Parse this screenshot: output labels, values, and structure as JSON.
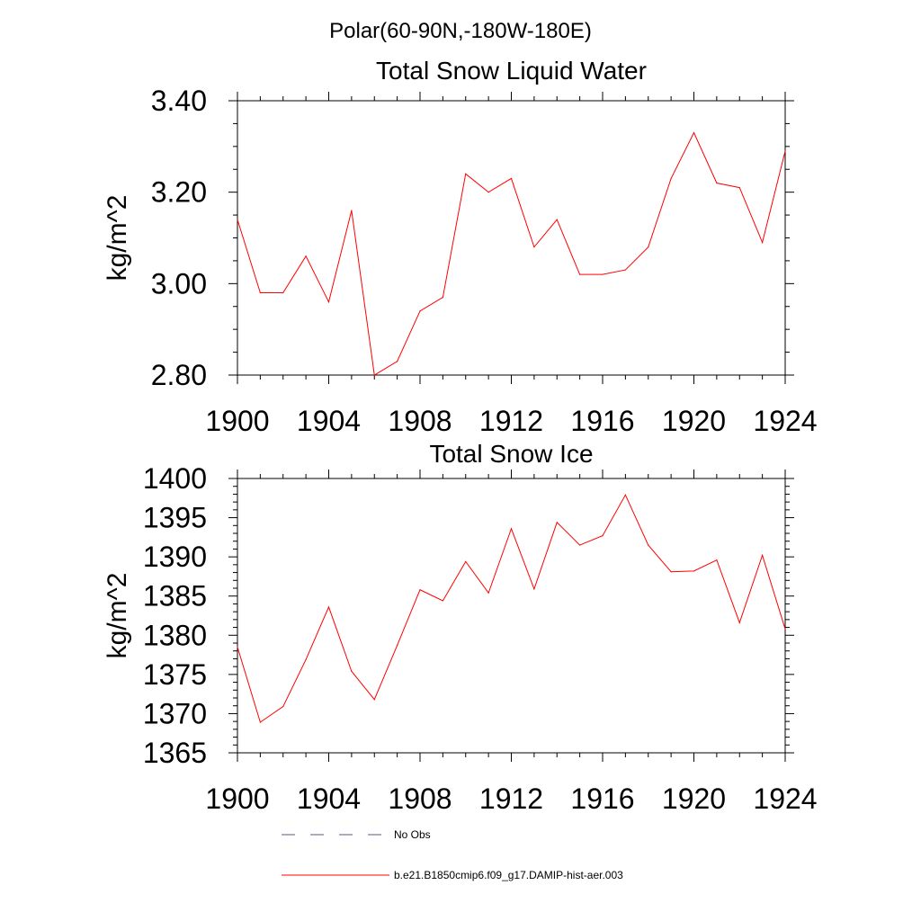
{
  "figure": {
    "main_title": "Polar(60-90N,-180W-180E)"
  },
  "chart_data": [
    {
      "type": "line",
      "title": "Total Snow Liquid Water",
      "xlabel": "",
      "ylabel": "kg/m^2",
      "xlim": [
        1900,
        1924
      ],
      "ylim": [
        2.8,
        3.4
      ],
      "x_ticks": [
        1900,
        1904,
        1908,
        1912,
        1916,
        1920,
        1924
      ],
      "x_tick_labels": [
        "1900",
        "1904",
        "1908",
        "1912",
        "1916",
        "1920",
        "1924"
      ],
      "y_ticks": [
        2.8,
        3.0,
        3.2,
        3.4
      ],
      "y_tick_labels": [
        "2.80",
        "3.00",
        "3.20",
        "3.40"
      ],
      "y_minor_step": 0.05,
      "x_minor_step": 1,
      "grid": false,
      "series": [
        {
          "name": "b.e21.B1850cmip6.f09_g17.DAMIP-hist-aer.003",
          "color": "#ff0000",
          "x": [
            1900,
            1901,
            1902,
            1903,
            1904,
            1905,
            1906,
            1907,
            1908,
            1909,
            1910,
            1911,
            1912,
            1913,
            1914,
            1915,
            1916,
            1917,
            1918,
            1919,
            1920,
            1921,
            1922,
            1923,
            1924
          ],
          "values": [
            3.14,
            2.98,
            2.98,
            3.06,
            2.96,
            3.16,
            2.8,
            2.83,
            2.94,
            2.97,
            3.24,
            3.2,
            3.23,
            3.08,
            3.14,
            3.02,
            3.02,
            3.03,
            3.08,
            3.23,
            3.33,
            3.22,
            3.21,
            3.09,
            3.29
          ]
        }
      ]
    },
    {
      "type": "line",
      "title": "Total Snow Ice",
      "xlabel": "",
      "ylabel": "kg/m^2",
      "xlim": [
        1900,
        1924
      ],
      "ylim": [
        1365,
        1400
      ],
      "x_ticks": [
        1900,
        1904,
        1908,
        1912,
        1916,
        1920,
        1924
      ],
      "x_tick_labels": [
        "1900",
        "1904",
        "1908",
        "1912",
        "1916",
        "1920",
        "1924"
      ],
      "y_ticks": [
        1365,
        1370,
        1375,
        1380,
        1385,
        1390,
        1395,
        1400
      ],
      "y_tick_labels": [
        "1365",
        "1370",
        "1375",
        "1380",
        "1385",
        "1390",
        "1395",
        "1400"
      ],
      "y_minor_step": 1,
      "x_minor_step": 1,
      "grid": false,
      "series": [
        {
          "name": "b.e21.B1850cmip6.f09_g17.DAMIP-hist-aer.003",
          "color": "#ff0000",
          "x": [
            1900,
            1901,
            1902,
            1903,
            1904,
            1905,
            1906,
            1907,
            1908,
            1909,
            1910,
            1911,
            1912,
            1913,
            1914,
            1915,
            1916,
            1917,
            1918,
            1919,
            1920,
            1921,
            1922,
            1923,
            1924
          ],
          "values": [
            1378.5,
            1368.9,
            1370.9,
            1376.9,
            1383.6,
            1375.4,
            1371.8,
            1378.7,
            1385.8,
            1384.4,
            1389.4,
            1385.4,
            1393.6,
            1385.9,
            1394.4,
            1391.5,
            1392.7,
            1397.9,
            1391.5,
            1388.1,
            1388.2,
            1389.6,
            1381.6,
            1390.2,
            1380.8
          ]
        }
      ]
    }
  ],
  "legend": {
    "placement": "bottom",
    "items": [
      {
        "label": "No Obs",
        "style": "dashed",
        "color": "#4a5d8a"
      },
      {
        "label": "b.e21.B1850cmip6.f09_g17.DAMIP-hist-aer.003",
        "style": "solid",
        "color": "#ff0000"
      }
    ]
  }
}
